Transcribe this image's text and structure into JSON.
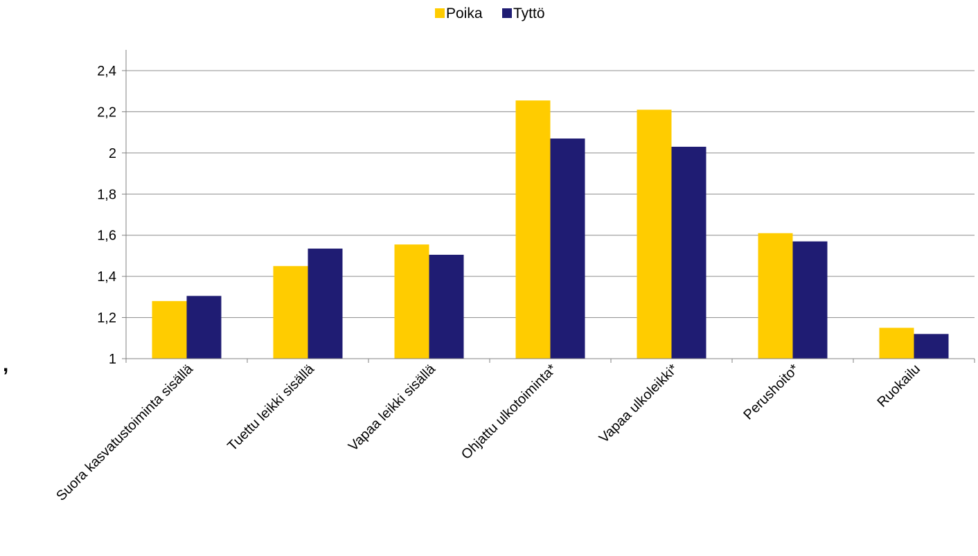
{
  "stray_mark": ",",
  "chart_data": {
    "type": "bar",
    "title": "",
    "xlabel": "",
    "ylabel": "",
    "ylim": [
      1,
      2.4
    ],
    "y_ticks": [
      "1",
      "1,2",
      "1,4",
      "1,6",
      "1,8",
      "2",
      "2,2",
      "2,4"
    ],
    "y_tick_values": [
      1,
      1.2,
      1.4,
      1.6,
      1.8,
      2,
      2.2,
      2.4
    ],
    "grid": true,
    "legend_position": "top",
    "categories": [
      "Suora kasvatustoiminta sisällä",
      "Tuettu leikki sisällä",
      "Vapaa leikki sisällä",
      "Ohjattu ulkotoiminta*",
      "Vapaa ulkoleikki*",
      "Perushoito*",
      "Ruokailu"
    ],
    "series": [
      {
        "name": "Poika",
        "color": "#FFCC00",
        "values": [
          1.28,
          1.45,
          1.555,
          2.255,
          2.21,
          1.61,
          1.15
        ]
      },
      {
        "name": "Tyttö",
        "color": "#1F1C73",
        "values": [
          1.305,
          1.535,
          1.505,
          2.07,
          2.03,
          1.57,
          1.12
        ]
      }
    ]
  }
}
